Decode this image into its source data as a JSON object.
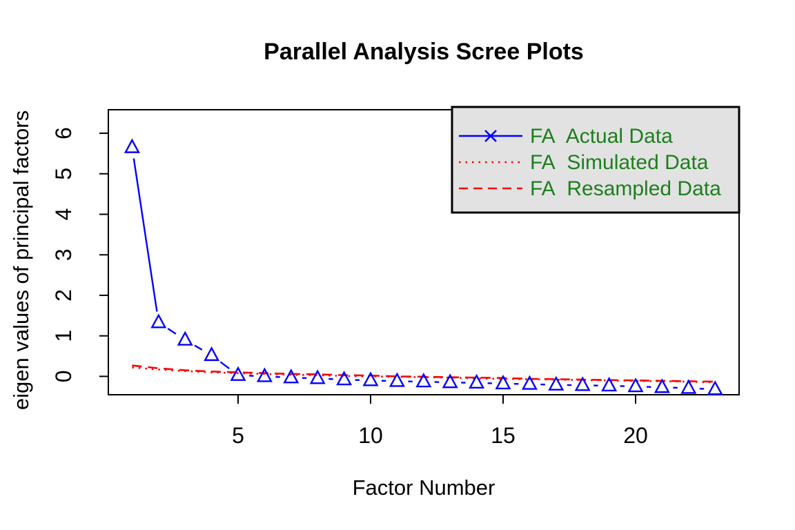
{
  "chart_data": {
    "type": "line",
    "title": "Parallel Analysis Scree Plots",
    "xlabel": "Factor Number",
    "ylabel": "eigen values of principal factors",
    "x": [
      1,
      2,
      3,
      4,
      5,
      6,
      7,
      8,
      9,
      10,
      11,
      12,
      13,
      14,
      15,
      16,
      17,
      18,
      19,
      20,
      21,
      22,
      23
    ],
    "series": [
      {
        "name": "FA  Actual Data",
        "color": "#0000FF",
        "line_style": "solid",
        "plot_type": "points-and-line",
        "marker": "triangle-open",
        "legend_marker": "x-cross",
        "values": [
          5.65,
          1.33,
          0.9,
          0.52,
          0.03,
          0.0,
          -0.03,
          -0.05,
          -0.08,
          -0.1,
          -0.12,
          -0.13,
          -0.15,
          -0.16,
          -0.18,
          -0.19,
          -0.21,
          -0.22,
          -0.23,
          -0.25,
          -0.27,
          -0.29,
          -0.32
        ]
      },
      {
        "name": "FA  Simulated Data",
        "color": "#FF0000",
        "line_style": "dotted",
        "plot_type": "line",
        "marker": null,
        "values": [
          0.22,
          0.17,
          0.13,
          0.1,
          0.08,
          0.06,
          0.04,
          0.03,
          0.01,
          0.0,
          -0.01,
          -0.02,
          -0.03,
          -0.05,
          -0.06,
          -0.07,
          -0.08,
          -0.09,
          -0.1,
          -0.11,
          -0.12,
          -0.13,
          -0.15
        ]
      },
      {
        "name": "FA  Resampled Data",
        "color": "#FF0000",
        "line_style": "dashed",
        "plot_type": "line",
        "marker": null,
        "values": [
          0.27,
          0.2,
          0.15,
          0.12,
          0.1,
          0.08,
          0.06,
          0.05,
          0.03,
          0.02,
          0.0,
          -0.01,
          -0.02,
          -0.03,
          -0.04,
          -0.06,
          -0.07,
          -0.08,
          -0.09,
          -0.1,
          -0.11,
          -0.12,
          -0.13
        ]
      }
    ],
    "xticks": [
      5,
      10,
      15,
      20
    ],
    "yticks": [
      0,
      1,
      2,
      3,
      4,
      5,
      6
    ],
    "xlim": [
      0.12,
      23.88
    ],
    "ylim": [
      -0.45,
      6.58
    ],
    "grid": false,
    "legend": {
      "position": "top-right",
      "bg_color": "#E2E2E2",
      "border_color": "#000000",
      "text_color": "#1E7E1E"
    }
  }
}
